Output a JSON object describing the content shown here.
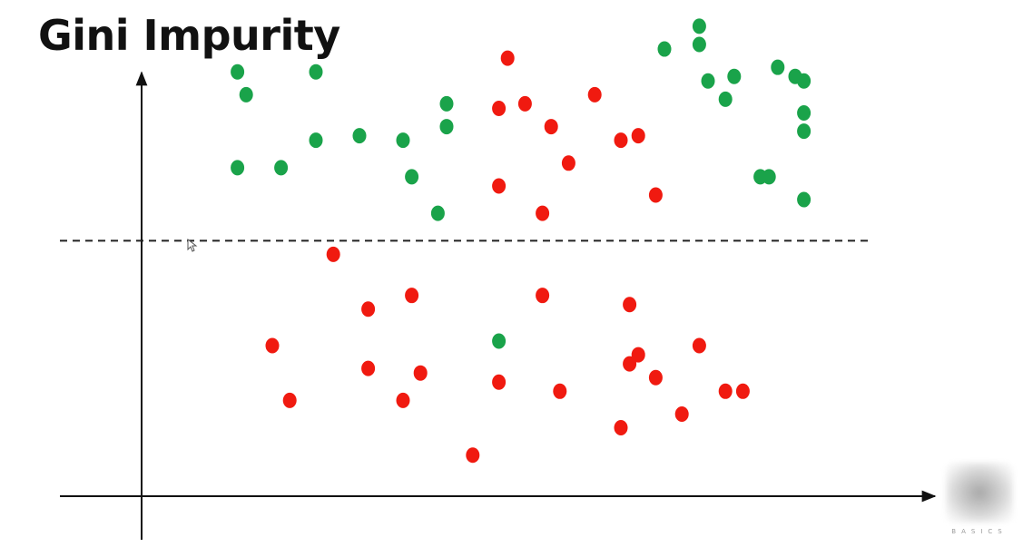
{
  "title": "Gini Impurity",
  "watermark_text": "BASICS",
  "colors": {
    "class_a": "#1aa34a",
    "class_b": "#f01a10",
    "axis": "#111111",
    "split_line": "#222222"
  },
  "chart_data": {
    "type": "scatter",
    "title": "Gini Impurity",
    "xlabel": "",
    "ylabel": "",
    "xlim": [
      0,
      100
    ],
    "ylim": [
      0,
      100
    ],
    "grid": false,
    "split_threshold_y": 56,
    "series": [
      {
        "color": "#1aa34a",
        "points": [
          [
            11,
            93
          ],
          [
            12,
            88
          ],
          [
            20,
            93
          ],
          [
            11,
            72
          ],
          [
            16,
            72
          ],
          [
            20,
            78
          ],
          [
            25,
            79
          ],
          [
            30,
            78
          ],
          [
            31,
            70
          ],
          [
            35,
            86
          ],
          [
            35,
            81
          ],
          [
            34,
            62
          ],
          [
            60,
            98
          ],
          [
            64,
            103
          ],
          [
            64,
            99
          ],
          [
            65,
            91
          ],
          [
            67,
            87
          ],
          [
            68,
            92
          ],
          [
            73,
            94
          ],
          [
            76,
            91
          ],
          [
            72,
            70
          ],
          [
            76,
            65
          ],
          [
            71,
            70
          ],
          [
            76,
            84
          ],
          [
            76,
            80
          ],
          [
            75,
            92
          ],
          [
            41,
            34
          ]
        ]
      },
      {
        "color": "#f01a10",
        "points": [
          [
            42,
            96
          ],
          [
            41,
            85
          ],
          [
            44,
            86
          ],
          [
            47,
            81
          ],
          [
            52,
            88
          ],
          [
            49,
            73
          ],
          [
            55,
            78
          ],
          [
            57,
            79
          ],
          [
            41,
            68
          ],
          [
            46,
            62
          ],
          [
            59,
            66
          ],
          [
            22,
            53
          ],
          [
            26,
            41
          ],
          [
            31,
            44
          ],
          [
            15,
            33
          ],
          [
            26,
            28
          ],
          [
            32,
            27
          ],
          [
            17,
            21
          ],
          [
            30,
            21
          ],
          [
            46,
            44
          ],
          [
            56,
            42
          ],
          [
            41,
            25
          ],
          [
            48,
            23
          ],
          [
            56,
            29
          ],
          [
            57,
            31
          ],
          [
            59,
            26
          ],
          [
            64,
            33
          ],
          [
            55,
            15
          ],
          [
            62,
            18
          ],
          [
            67,
            23
          ],
          [
            69,
            23
          ],
          [
            38,
            9
          ]
        ]
      }
    ]
  }
}
